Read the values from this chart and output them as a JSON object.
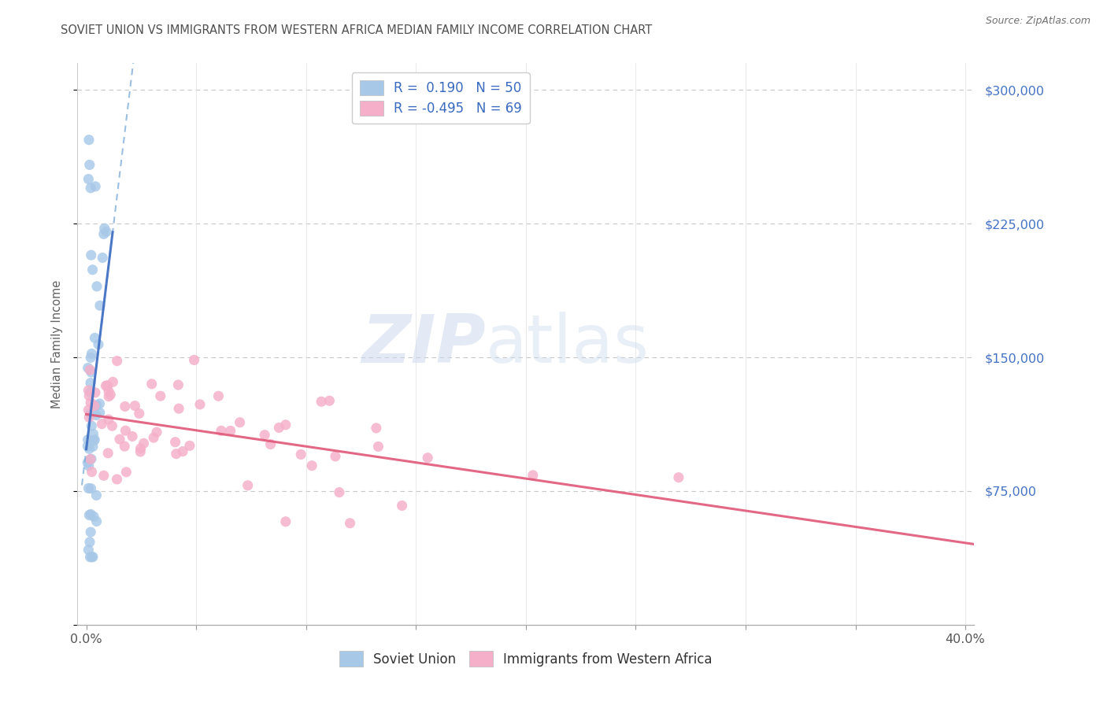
{
  "title": "SOVIET UNION VS IMMIGRANTS FROM WESTERN AFRICA MEDIAN FAMILY INCOME CORRELATION CHART",
  "source": "Source: ZipAtlas.com",
  "ylabel": "Median Family Income",
  "xlim": [
    -0.004,
    0.404
  ],
  "ylim": [
    0,
    315000
  ],
  "yticks": [
    0,
    75000,
    150000,
    225000,
    300000
  ],
  "right_ytick_labels": [
    "$75,000",
    "$150,000",
    "$225,000",
    "$300,000"
  ],
  "right_ytick_positions": [
    75000,
    150000,
    225000,
    300000
  ],
  "xticks": [
    0.0,
    0.05,
    0.1,
    0.15,
    0.2,
    0.25,
    0.3,
    0.35,
    0.4
  ],
  "xtick_labels": [
    "0.0%",
    "",
    "",
    "",
    "",
    "",
    "",
    "",
    "40.0%"
  ],
  "watermark_zip": "ZIP",
  "watermark_atlas": "atlas",
  "legend_r1": "R =  0.190",
  "legend_n1": "N = 50",
  "legend_r2": "R = -0.495",
  "legend_n2": "N = 69",
  "soviet_color": "#a8c8e8",
  "western_africa_color": "#f5afc8",
  "soviet_line_color": "#4472c4",
  "soviet_dash_color": "#7aaad8",
  "western_africa_line_color": "#e05878",
  "grid_color": "#c8c8c8",
  "background_color": "#ffffff",
  "title_color": "#505050",
  "right_tick_color": "#4472c4",
  "source_text": "Source: ZipAtlas.com",
  "bottom_legend1": "Soviet Union",
  "bottom_legend2": "Immigrants from Western Africa"
}
